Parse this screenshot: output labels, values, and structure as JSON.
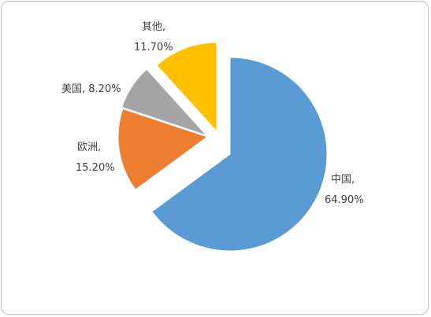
{
  "chart_data": {
    "type": "pie",
    "title": "",
    "exploded": true,
    "slices": [
      {
        "name": "中国",
        "value": 64.9,
        "label_line1": "中国,",
        "label_line2": "64.90%",
        "color": "#5b9bd5"
      },
      {
        "name": "欧洲",
        "value": 15.2,
        "label_line1": "欧洲,",
        "label_line2": "15.20%",
        "color": "#ed7d31"
      },
      {
        "name": "美国",
        "value": 8.2,
        "label_line1": "美国, 8.20%",
        "label_line2": "",
        "color": "#a5a5a5"
      },
      {
        "name": "其他",
        "value": 11.7,
        "label_line1": "其他,",
        "label_line2": "11.70%",
        "color": "#ffc000"
      }
    ]
  }
}
